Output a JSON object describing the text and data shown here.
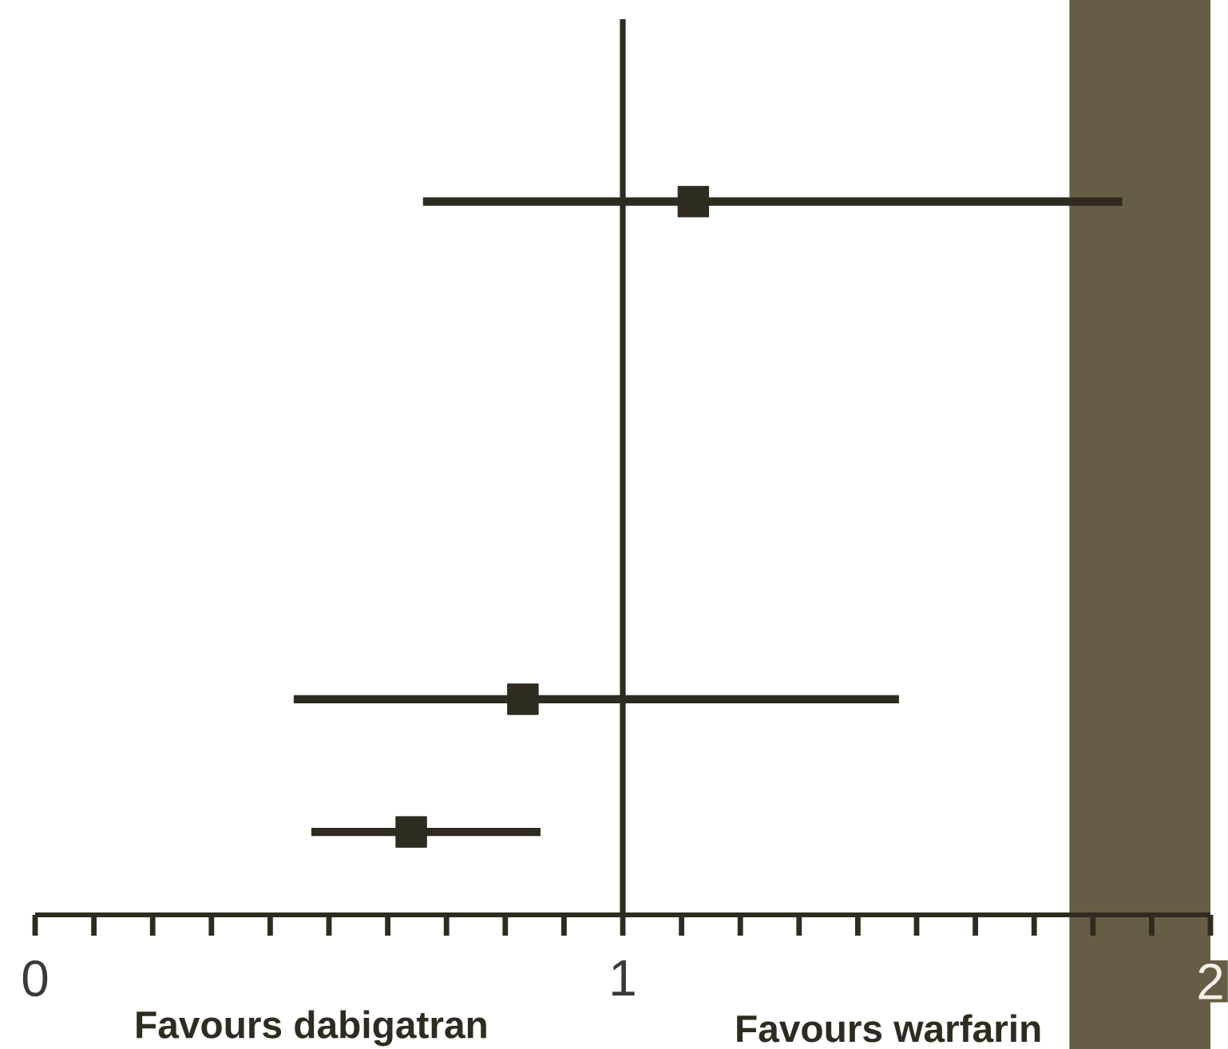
{
  "chart_data": {
    "type": "scatter",
    "orientation": "horizontal",
    "categories": [
      null,
      null,
      null,
      null,
      null,
      null,
      null,
      null,
      null,
      null,
      null,
      null,
      null,
      null,
      null,
      null,
      null,
      null,
      null,
      null,
      null,
      null,
      null,
      null,
      null,
      null,
      null
    ],
    "values": [
      null,
      null,
      null,
      null,
      null,
      1.12,
      null,
      null,
      null,
      null,
      null,
      null,
      null,
      null,
      null,
      null,
      null,
      null,
      null,
      null,
      0.83,
      null,
      null,
      null,
      0.64,
      null,
      null
    ],
    "errors": [
      null,
      null,
      null,
      null,
      null,
      [
        0.66,
        1.85
      ],
      null,
      null,
      null,
      null,
      null,
      null,
      null,
      null,
      null,
      null,
      null,
      null,
      null,
      null,
      [
        0.44,
        1.47
      ],
      null,
      null,
      null,
      [
        0.47,
        0.86
      ],
      null,
      null
    ],
    "color": "#2f2b20",
    "marker": "square",
    "xlim": [
      0,
      2
    ],
    "xticks": [
      0,
      {
        "value": 0.1,
        "label": null
      },
      {
        "value": 0.2,
        "label": null
      },
      {
        "value": 0.3,
        "label": null
      },
      {
        "value": 0.4,
        "label": null
      },
      {
        "value": 0.5,
        "label": null
      },
      {
        "value": 0.6,
        "label": null
      },
      {
        "value": 0.7,
        "label": null
      },
      {
        "value": 0.8,
        "label": null
      },
      {
        "value": 0.9,
        "label": null
      },
      1,
      {
        "value": 1.1,
        "label": null
      },
      {
        "value": 1.2,
        "label": null
      },
      {
        "value": 1.3,
        "label": null
      },
      {
        "value": 1.4,
        "label": null
      },
      {
        "value": 1.5,
        "label": null
      },
      {
        "value": 1.6,
        "label": null
      },
      {
        "value": 1.7,
        "label": null
      },
      {
        "value": 1.8,
        "label": null
      },
      {
        "value": 1.9,
        "label": null
      },
      2
    ],
    "tick_labels": "x",
    "ref_lines": [
      {
        "axis": "x",
        "value": 1,
        "color": "#2f2b20"
      }
    ],
    "bands": [
      {
        "axis": "x",
        "from": 1.76,
        "to": 2,
        "color": "#665d46"
      }
    ],
    "annotations": [
      "Favours dabigatran",
      "Favours warfarin"
    ]
  }
}
